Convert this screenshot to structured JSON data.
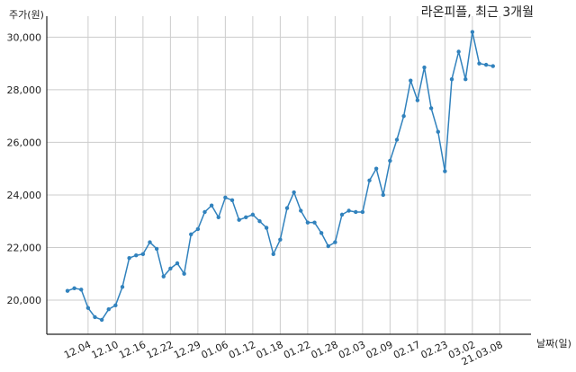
{
  "colors": {
    "line": "#3182bd",
    "grid": "#cccccc",
    "axis": "#222222",
    "text": "#222222"
  },
  "chart_data": {
    "type": "line",
    "title": "라온피플, 최근 3개월",
    "ylabel": "주가(원)",
    "xlabel": "날짜(일)",
    "ylim": [
      18700,
      30800
    ],
    "yticks": [
      20000,
      22000,
      24000,
      26000,
      28000,
      30000
    ],
    "ytick_labels": [
      "20,000",
      "22,000",
      "24,000",
      "26,000",
      "28,000",
      "30,000"
    ],
    "grid": true,
    "xtick_labels": [
      "12.04",
      "12.10",
      "12.16",
      "12.22",
      "12.29",
      "01.06",
      "01.12",
      "01.18",
      "01.22",
      "01.28",
      "02.03",
      "02.09",
      "02.17",
      "02.23",
      "03.02",
      "21.03.08"
    ],
    "xtick_positions": [
      3,
      7,
      11,
      15,
      19,
      23,
      27,
      31,
      35,
      39,
      43,
      47,
      51,
      55,
      59,
      63
    ],
    "series": [
      {
        "values": [
          20350,
          20450,
          20400,
          19700,
          19350,
          19250,
          19650,
          19800,
          20500,
          21600,
          21700,
          21750,
          22200,
          21950,
          20900,
          21200,
          21400,
          21000,
          22500,
          22700,
          23350,
          23600,
          23150,
          23900,
          23800,
          23050,
          23150,
          23250,
          23000,
          22750,
          21750,
          22300,
          23500,
          24100,
          23400,
          22950,
          22950,
          22550,
          22050,
          22200,
          23250,
          23400,
          23350,
          23350,
          24550,
          25000,
          24000,
          25300,
          26100,
          27000,
          28350,
          27600,
          28850,
          27300,
          26400,
          24900,
          28400,
          29450,
          28400,
          30200,
          29000,
          28950,
          28900
        ]
      }
    ]
  }
}
